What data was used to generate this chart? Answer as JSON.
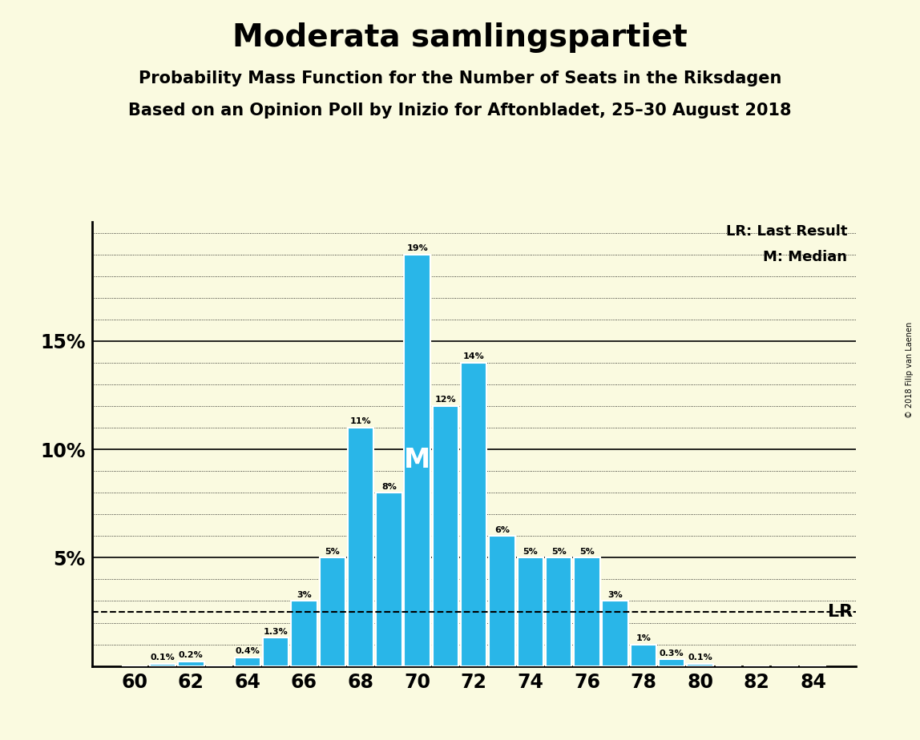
{
  "title": "Moderata samlingspartiet",
  "subtitle1": "Probability Mass Function for the Number of Seats in the Riksdagen",
  "subtitle2": "Based on an Opinion Poll by Inizio for Aftonbladet, 25–30 August 2018",
  "copyright": "© 2018 Filip van Laenen",
  "seats": [
    60,
    61,
    62,
    63,
    64,
    65,
    66,
    67,
    68,
    69,
    70,
    71,
    72,
    73,
    74,
    75,
    76,
    77,
    78,
    79,
    80,
    81,
    82,
    83,
    84
  ],
  "probabilities": [
    0.0,
    0.1,
    0.2,
    0.0,
    0.4,
    1.3,
    3.0,
    5.0,
    11.0,
    8.0,
    19.0,
    12.0,
    14.0,
    6.0,
    5.0,
    5.0,
    5.0,
    3.0,
    1.0,
    0.3,
    0.1,
    0.0,
    0.0,
    0.0,
    0.0
  ],
  "bar_color": "#29B6E8",
  "bar_edge_color": "#FFFFFF",
  "background_color": "#FAFAE0",
  "median_seat": 70,
  "last_result_seat": 84,
  "yticks_labeled": [
    5,
    10,
    15
  ],
  "yticks_all": [
    0,
    1,
    2,
    3,
    4,
    5,
    6,
    7,
    8,
    9,
    10,
    11,
    12,
    13,
    14,
    15,
    16,
    17,
    18,
    19,
    20
  ],
  "solid_yticks": [
    5,
    10,
    15
  ],
  "xticks": [
    60,
    62,
    64,
    66,
    68,
    70,
    72,
    74,
    76,
    78,
    80,
    82,
    84
  ],
  "ylim": [
    0,
    20.5
  ],
  "legend_lr": "LR: Last Result",
  "legend_m": "M: Median",
  "lr_label": "LR",
  "m_label": "M"
}
